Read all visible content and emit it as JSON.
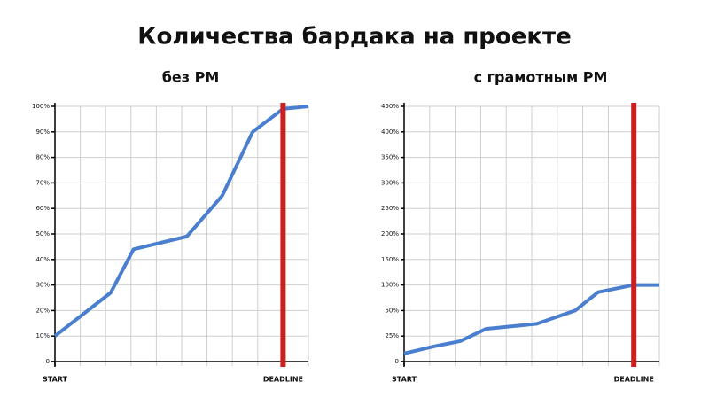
{
  "title": "Количества бардака на проекте",
  "chart_data": [
    {
      "type": "line",
      "title": "без PM",
      "x": [
        0,
        2.2,
        3.1,
        5.2,
        6.6,
        7.8,
        9,
        10
      ],
      "values": [
        10,
        27,
        44,
        49,
        65,
        90,
        99,
        100
      ],
      "color": "#4a7fcf",
      "xlim": [
        0,
        10
      ],
      "xticks": [
        {
          "value": 0,
          "label": "START"
        },
        {
          "value": 9,
          "label": "DEADLINE"
        }
      ],
      "ylim": [
        0,
        100
      ],
      "y_scale": "linear",
      "yticks": [
        0,
        {
          "value": 10,
          "label": "10%"
        },
        {
          "value": 20,
          "label": "20%"
        },
        {
          "value": 30,
          "label": "30%"
        },
        {
          "value": 40,
          "label": "40%"
        },
        {
          "value": 50,
          "label": "50%"
        },
        {
          "value": 60,
          "label": "60%"
        },
        {
          "value": 70,
          "label": "70%"
        },
        {
          "value": 80,
          "label": "80%"
        },
        {
          "value": 90,
          "label": "90%"
        },
        {
          "value": 100,
          "label": "100%"
        }
      ],
      "grid": true,
      "vline": {
        "x": 9,
        "color": "#cc1f1f"
      }
    },
    {
      "type": "line",
      "title": "с грамотным PM",
      "x": [
        0,
        1.2,
        2.2,
        3.2,
        5.2,
        6.7,
        7.6,
        9,
        10
      ],
      "values": [
        8,
        15,
        20,
        32,
        37,
        50,
        86,
        100,
        100
      ],
      "color": "#4a7fcf",
      "xlim": [
        0,
        10
      ],
      "xticks": [
        {
          "value": 0,
          "label": "START"
        },
        {
          "value": 9,
          "label": "DEADLINE"
        }
      ],
      "ylim": [
        0,
        450
      ],
      "y_scale": "tick-spaced",
      "yticks": [
        0,
        {
          "value": 25,
          "label": "25%"
        },
        {
          "value": 50,
          "label": "50%"
        },
        {
          "value": 100,
          "label": "100%"
        },
        {
          "value": 150,
          "label": "150%"
        },
        {
          "value": 200,
          "label": "200%"
        },
        {
          "value": 250,
          "label": "250%"
        },
        {
          "value": 300,
          "label": "300%"
        },
        {
          "value": 350,
          "label": "350%"
        },
        {
          "value": 400,
          "label": "400%"
        },
        {
          "value": 450,
          "label": "450%"
        }
      ],
      "grid": true,
      "vline": {
        "x": 9,
        "color": "#cc1f1f"
      }
    }
  ]
}
